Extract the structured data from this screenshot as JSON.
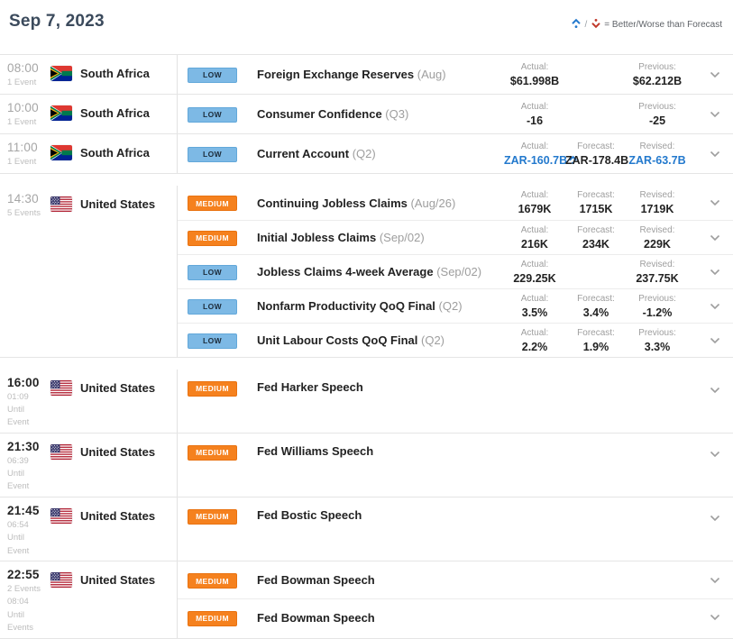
{
  "header": {
    "date": "Sep 7, 2023",
    "legend_text": "= Better/Worse than Forecast",
    "legend_better_color": "#2379cd",
    "legend_worse_color": "#c0392b"
  },
  "colors": {
    "low_badge": "#7db9e5",
    "medium_badge": "#f5811e",
    "blue_value": "#2379cd"
  },
  "groups": [
    {
      "time": "08:00",
      "sub_lines": [
        "1 Event"
      ],
      "country": "South Africa",
      "flag": "south-africa",
      "gap_before": false,
      "events": [
        {
          "importance": "LOW",
          "name": "Foreign Exchange Reserves",
          "qualifier": "(Aug)",
          "slots": [
            {
              "label": "Actual:",
              "value": "$61.998B"
            },
            null,
            {
              "label": "Previous:",
              "value": "$62.212B"
            }
          ]
        }
      ]
    },
    {
      "time": "10:00",
      "sub_lines": [
        "1 Event"
      ],
      "country": "South Africa",
      "flag": "south-africa",
      "gap_before": false,
      "events": [
        {
          "importance": "LOW",
          "name": "Consumer Confidence",
          "qualifier": "(Q3)",
          "slots": [
            {
              "label": "Actual:",
              "value": "-16"
            },
            null,
            {
              "label": "Previous:",
              "value": "-25"
            }
          ]
        }
      ]
    },
    {
      "time": "11:00",
      "sub_lines": [
        "1 Event"
      ],
      "country": "South Africa",
      "flag": "south-africa",
      "gap_before": false,
      "events": [
        {
          "importance": "LOW",
          "name": "Current Account",
          "qualifier": "(Q2)",
          "slots": [
            {
              "label": "Actual:",
              "value": "ZAR-160.7B",
              "color": "blue",
              "arrow": "up"
            },
            {
              "label": "Forecast:",
              "value": "ZAR-178.4B"
            },
            {
              "label": "Revised:",
              "value": "ZAR-63.7B",
              "color": "blue"
            }
          ]
        }
      ]
    },
    {
      "time": "14:30",
      "sub_lines": [
        "5 Events"
      ],
      "country": "United States",
      "flag": "united-states",
      "gap_before": true,
      "events": [
        {
          "importance": "MEDIUM",
          "name": "Continuing Jobless Claims",
          "qualifier": "(Aug/26)",
          "slots": [
            {
              "label": "Actual:",
              "value": "1679K"
            },
            {
              "label": "Forecast:",
              "value": "1715K"
            },
            {
              "label": "Revised:",
              "value": "1719K"
            }
          ]
        },
        {
          "importance": "MEDIUM",
          "name": "Initial Jobless Claims",
          "qualifier": "(Sep/02)",
          "slots": [
            {
              "label": "Actual:",
              "value": "216K"
            },
            {
              "label": "Forecast:",
              "value": "234K"
            },
            {
              "label": "Revised:",
              "value": "229K"
            }
          ]
        },
        {
          "importance": "LOW",
          "name": "Jobless Claims 4-week Average",
          "qualifier": "(Sep/02)",
          "slots": [
            {
              "label": "Actual:",
              "value": "229.25K"
            },
            null,
            {
              "label": "Revised:",
              "value": "237.75K"
            }
          ]
        },
        {
          "importance": "LOW",
          "name": "Nonfarm Productivity QoQ Final",
          "qualifier": "(Q2)",
          "slots": [
            {
              "label": "Actual:",
              "value": "3.5%"
            },
            {
              "label": "Forecast:",
              "value": "3.4%"
            },
            {
              "label": "Previous:",
              "value": "-1.2%"
            }
          ]
        },
        {
          "importance": "LOW",
          "name": "Unit Labour Costs QoQ Final",
          "qualifier": "(Q2)",
          "slots": [
            {
              "label": "Actual:",
              "value": "2.2%"
            },
            {
              "label": "Forecast:",
              "value": "1.9%"
            },
            {
              "label": "Previous:",
              "value": "3.3%"
            }
          ]
        }
      ]
    },
    {
      "time": "16:00",
      "sub_lines": [
        "01:09",
        "Until",
        "Event"
      ],
      "country": "United States",
      "flag": "united-states",
      "gap_before": true,
      "events": [
        {
          "importance": "MEDIUM",
          "name": "Fed Harker Speech",
          "qualifier": "",
          "slots": [
            null,
            null,
            null
          ]
        }
      ]
    },
    {
      "time": "21:30",
      "sub_lines": [
        "06:39",
        "Until",
        "Event"
      ],
      "country": "United States",
      "flag": "united-states",
      "gap_before": false,
      "events": [
        {
          "importance": "MEDIUM",
          "name": "Fed Williams Speech",
          "qualifier": "",
          "slots": [
            null,
            null,
            null
          ]
        }
      ]
    },
    {
      "time": "21:45",
      "sub_lines": [
        "06:54",
        "Until",
        "Event"
      ],
      "country": "United States",
      "flag": "united-states",
      "gap_before": false,
      "events": [
        {
          "importance": "MEDIUM",
          "name": "Fed Bostic Speech",
          "qualifier": "",
          "slots": [
            null,
            null,
            null
          ]
        }
      ]
    },
    {
      "time": "22:55",
      "sub_lines": [
        "2 Events",
        "08:04",
        "Until",
        "Events"
      ],
      "country": "United States",
      "flag": "united-states",
      "gap_before": false,
      "events": [
        {
          "importance": "MEDIUM",
          "name": "Fed Bowman Speech",
          "qualifier": "",
          "slots": [
            null,
            null,
            null
          ]
        },
        {
          "importance": "MEDIUM",
          "name": "Fed Bowman Speech",
          "qualifier": "",
          "slots": [
            null,
            null,
            null
          ]
        }
      ]
    }
  ]
}
